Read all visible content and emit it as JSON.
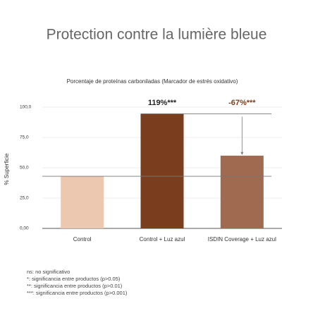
{
  "chart_data": {
    "type": "bar",
    "title": "Protection contre la lumière bleue",
    "subtitle": "Porcentaje de proteínas carboniladas (Marcador de estrés oxidativo)",
    "y_label": "% Superficie",
    "categories": [
      "Control",
      "Control + Luz azul",
      "ISDIN Coverage + Luz azul"
    ],
    "values": [
      43,
      94.5,
      60
    ],
    "colors": [
      "#ecc8b0",
      "#7a3e1e",
      "#a06a50"
    ],
    "ylim": [
      0,
      100
    ],
    "yticks": [
      {
        "value": 0,
        "label": "0,00"
      },
      {
        "value": 25,
        "label": "25,0"
      },
      {
        "value": 50,
        "label": "50,0"
      },
      {
        "value": 75,
        "label": "75,0"
      },
      {
        "value": 100,
        "label": "100,0"
      }
    ],
    "grid": true,
    "annotations": [
      {
        "text": "119%***",
        "color": "#222222"
      },
      {
        "text": "-67%***",
        "color": "#7a3e1e"
      }
    ],
    "notes": [
      "ns: no significativo",
      "*: significancia entre productos (p>0.05)",
      "**: significancia entre productos (p>0.01)",
      "***: significancia entre productos (p>0.001)"
    ]
  }
}
